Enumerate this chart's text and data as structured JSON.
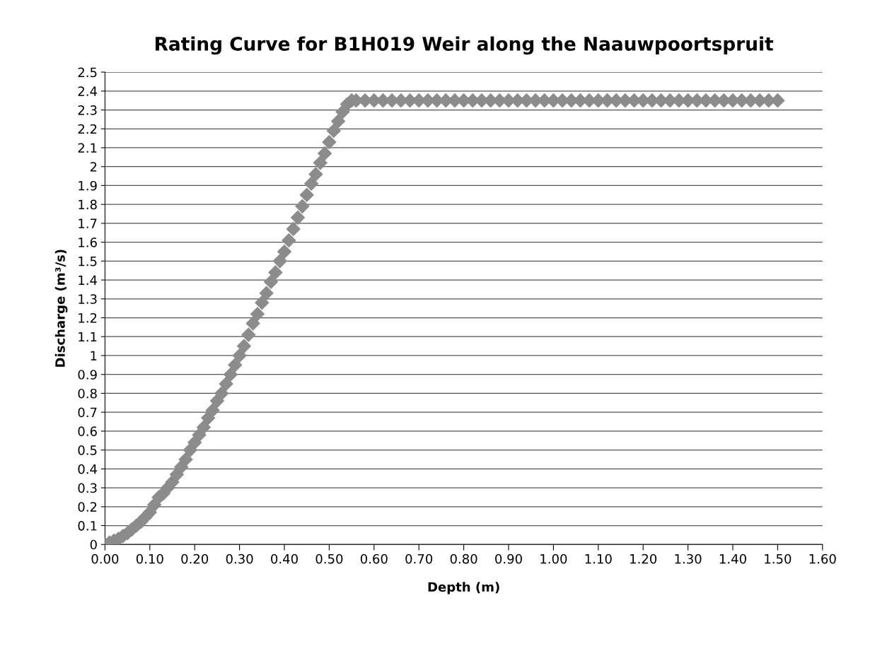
{
  "chart_data": {
    "type": "scatter",
    "title": "Rating Curve for B1H019 Weir along the Naauwpoortspruit",
    "xlabel": "Depth (m)",
    "ylabel": "Discharge (m³/s)",
    "xlim": [
      0,
      1.6
    ],
    "ylim": [
      0,
      2.5
    ],
    "xticks": [
      {
        "value": 0,
        "label": "0.00"
      },
      {
        "value": 0.1,
        "label": "0.10"
      },
      {
        "value": 0.2,
        "label": "0.20"
      },
      {
        "value": 0.3,
        "label": "0.30"
      },
      {
        "value": 0.4,
        "label": "0.40"
      },
      {
        "value": 0.5,
        "label": "0.50"
      },
      {
        "value": 0.6,
        "label": "0.60"
      },
      {
        "value": 0.7,
        "label": "0.70"
      },
      {
        "value": 0.8,
        "label": "0.80"
      },
      {
        "value": 0.9,
        "label": "0.90"
      },
      {
        "value": 1.0,
        "label": "1.00"
      },
      {
        "value": 1.1,
        "label": "1.10"
      },
      {
        "value": 1.2,
        "label": "1.20"
      },
      {
        "value": 1.3,
        "label": "1.30"
      },
      {
        "value": 1.4,
        "label": "1.40"
      },
      {
        "value": 1.5,
        "label": "1.50"
      },
      {
        "value": 1.6,
        "label": "1.60"
      }
    ],
    "yticks": [
      0,
      0.1,
      0.2,
      0.3,
      0.4,
      0.5,
      0.6,
      0.7,
      0.8,
      0.9,
      1,
      1.1,
      1.2,
      1.3,
      1.4,
      1.5,
      1.6,
      1.7,
      1.8,
      1.9,
      2,
      2.1,
      2.2,
      2.3,
      2.4,
      2.5
    ],
    "grid": "y",
    "marker": "diamond",
    "series": [
      {
        "color": "#8c8c8c",
        "x": [
          0,
          0.01,
          0.02,
          0.03,
          0.04,
          0.05,
          0.06,
          0.07,
          0.08,
          0.09,
          0.1,
          0.11,
          0.12,
          0.13,
          0.14,
          0.15,
          0.16,
          0.17,
          0.18,
          0.19,
          0.2,
          0.21,
          0.22,
          0.23,
          0.24,
          0.25,
          0.26,
          0.27,
          0.28,
          0.29,
          0.3,
          0.31,
          0.32,
          0.33,
          0.34,
          0.35,
          0.36,
          0.37,
          0.38,
          0.39,
          0.4,
          0.41,
          0.42,
          0.43,
          0.44,
          0.45,
          0.46,
          0.47,
          0.48,
          0.49,
          0.5,
          0.51,
          0.52,
          0.53,
          0.54,
          0.55,
          0.56,
          0.58,
          0.6,
          0.62,
          0.64,
          0.66,
          0.68,
          0.7,
          0.72,
          0.74,
          0.76,
          0.78,
          0.8,
          0.82,
          0.84,
          0.86,
          0.88,
          0.9,
          0.92,
          0.94,
          0.96,
          0.98,
          1.0,
          1.02,
          1.04,
          1.06,
          1.08,
          1.1,
          1.12,
          1.14,
          1.16,
          1.18,
          1.2,
          1.22,
          1.24,
          1.26,
          1.28,
          1.3,
          1.32,
          1.34,
          1.36,
          1.38,
          1.4,
          1.42,
          1.44,
          1.46,
          1.48,
          1.5
        ],
        "values": [
          0,
          0.01,
          0.02,
          0.03,
          0.045,
          0.06,
          0.08,
          0.1,
          0.12,
          0.145,
          0.17,
          0.21,
          0.25,
          0.27,
          0.3,
          0.33,
          0.37,
          0.41,
          0.45,
          0.5,
          0.54,
          0.58,
          0.62,
          0.67,
          0.71,
          0.76,
          0.8,
          0.85,
          0.9,
          0.95,
          1.0,
          1.05,
          1.11,
          1.17,
          1.22,
          1.28,
          1.33,
          1.39,
          1.44,
          1.5,
          1.55,
          1.61,
          1.67,
          1.73,
          1.79,
          1.85,
          1.91,
          1.96,
          2.02,
          2.07,
          2.13,
          2.19,
          2.24,
          2.29,
          2.33,
          2.35,
          2.35,
          2.35,
          2.35,
          2.35,
          2.35,
          2.35,
          2.35,
          2.35,
          2.35,
          2.35,
          2.35,
          2.35,
          2.35,
          2.35,
          2.35,
          2.35,
          2.35,
          2.35,
          2.35,
          2.35,
          2.35,
          2.35,
          2.35,
          2.35,
          2.35,
          2.35,
          2.35,
          2.35,
          2.35,
          2.35,
          2.35,
          2.35,
          2.35,
          2.35,
          2.35,
          2.35,
          2.35,
          2.35,
          2.35,
          2.35,
          2.35,
          2.35,
          2.35,
          2.35,
          2.35,
          2.35,
          2.35,
          2.35
        ]
      }
    ]
  }
}
